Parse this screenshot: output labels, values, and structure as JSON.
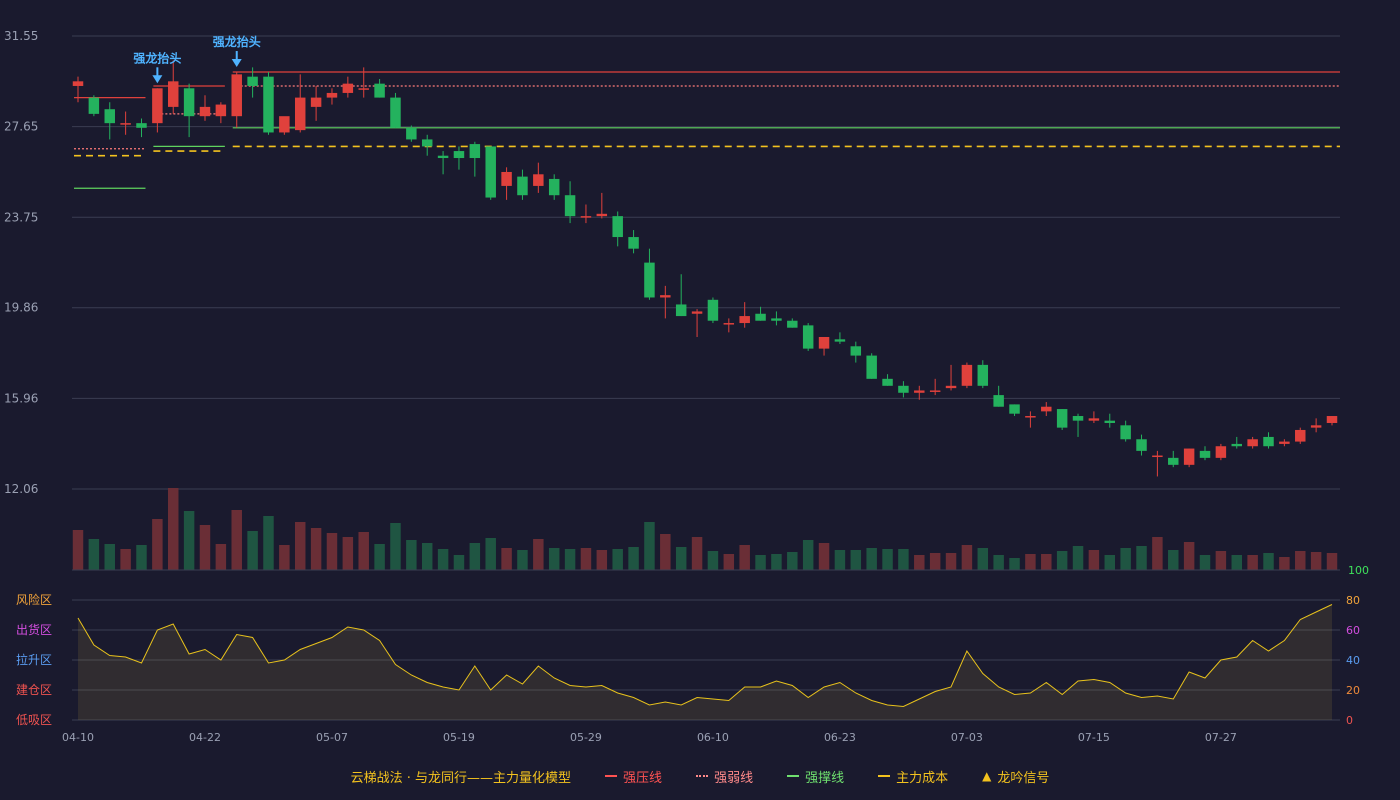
{
  "chart_data": {
    "type": "candlestick",
    "price_axis": {
      "ticks": [
        31.55,
        27.65,
        23.75,
        19.86,
        15.96,
        12.06
      ],
      "range": [
        12.06,
        31.55
      ]
    },
    "x_labels": [
      "04-10",
      "04-22",
      "05-07",
      "05-19",
      "05-29",
      "06-10",
      "06-23",
      "07-03",
      "07-15",
      "07-27"
    ],
    "x_label_index": [
      0,
      8,
      16,
      24,
      32,
      40,
      48,
      56,
      64,
      72
    ],
    "candles": [
      {
        "o": 29.4,
        "h": 29.8,
        "l": 28.7,
        "c": 29.6
      },
      {
        "o": 28.9,
        "h": 29.0,
        "l": 28.1,
        "c": 28.2
      },
      {
        "o": 28.4,
        "h": 28.7,
        "l": 27.1,
        "c": 27.8
      },
      {
        "o": 27.8,
        "h": 28.3,
        "l": 27.3,
        "c": 27.8
      },
      {
        "o": 27.8,
        "h": 28.0,
        "l": 27.2,
        "c": 27.6
      },
      {
        "o": 27.8,
        "h": 29.3,
        "l": 27.4,
        "c": 29.3
      },
      {
        "o": 28.5,
        "h": 30.5,
        "l": 28.2,
        "c": 29.6
      },
      {
        "o": 29.3,
        "h": 29.5,
        "l": 27.2,
        "c": 28.1
      },
      {
        "o": 28.1,
        "h": 29.0,
        "l": 27.9,
        "c": 28.5
      },
      {
        "o": 28.1,
        "h": 28.7,
        "l": 27.8,
        "c": 28.6
      },
      {
        "o": 28.1,
        "h": 30.0,
        "l": 27.6,
        "c": 29.9
      },
      {
        "o": 29.8,
        "h": 30.2,
        "l": 28.9,
        "c": 29.4
      },
      {
        "o": 29.8,
        "h": 30.0,
        "l": 27.3,
        "c": 27.4
      },
      {
        "o": 27.4,
        "h": 28.0,
        "l": 27.3,
        "c": 28.1
      },
      {
        "o": 27.5,
        "h": 29.9,
        "l": 27.4,
        "c": 28.9
      },
      {
        "o": 28.5,
        "h": 29.4,
        "l": 27.9,
        "c": 28.9
      },
      {
        "o": 28.9,
        "h": 29.3,
        "l": 28.6,
        "c": 29.1
      },
      {
        "o": 29.1,
        "h": 29.8,
        "l": 28.9,
        "c": 29.5
      },
      {
        "o": 29.3,
        "h": 30.2,
        "l": 28.9,
        "c": 29.3
      },
      {
        "o": 29.5,
        "h": 29.7,
        "l": 28.9,
        "c": 28.9
      },
      {
        "o": 28.9,
        "h": 29.1,
        "l": 27.6,
        "c": 27.6
      },
      {
        "o": 27.6,
        "h": 27.7,
        "l": 27.0,
        "c": 27.1
      },
      {
        "o": 27.1,
        "h": 27.3,
        "l": 26.4,
        "c": 26.8
      },
      {
        "o": 26.4,
        "h": 26.6,
        "l": 25.6,
        "c": 26.3
      },
      {
        "o": 26.6,
        "h": 26.8,
        "l": 25.8,
        "c": 26.3
      },
      {
        "o": 26.9,
        "h": 27.0,
        "l": 25.5,
        "c": 26.3
      },
      {
        "o": 26.8,
        "h": 26.8,
        "l": 24.5,
        "c": 24.6
      },
      {
        "o": 25.1,
        "h": 25.9,
        "l": 24.5,
        "c": 25.7
      },
      {
        "o": 25.5,
        "h": 25.8,
        "l": 24.5,
        "c": 24.7
      },
      {
        "o": 25.1,
        "h": 26.1,
        "l": 24.8,
        "c": 25.6
      },
      {
        "o": 25.4,
        "h": 25.6,
        "l": 24.5,
        "c": 24.7
      },
      {
        "o": 24.7,
        "h": 25.3,
        "l": 23.5,
        "c": 23.8
      },
      {
        "o": 23.8,
        "h": 24.3,
        "l": 23.5,
        "c": 23.8
      },
      {
        "o": 23.8,
        "h": 24.8,
        "l": 23.7,
        "c": 23.9
      },
      {
        "o": 23.8,
        "h": 24.0,
        "l": 22.5,
        "c": 22.9
      },
      {
        "o": 22.9,
        "h": 23.2,
        "l": 22.2,
        "c": 22.4
      },
      {
        "o": 21.8,
        "h": 22.4,
        "l": 20.2,
        "c": 20.3
      },
      {
        "o": 20.3,
        "h": 20.8,
        "l": 19.4,
        "c": 20.4
      },
      {
        "o": 20.0,
        "h": 21.3,
        "l": 19.5,
        "c": 19.5
      },
      {
        "o": 19.6,
        "h": 19.8,
        "l": 18.6,
        "c": 19.7
      },
      {
        "o": 20.2,
        "h": 20.3,
        "l": 19.2,
        "c": 19.3
      },
      {
        "o": 19.2,
        "h": 19.4,
        "l": 18.8,
        "c": 19.2
      },
      {
        "o": 19.2,
        "h": 20.1,
        "l": 19.0,
        "c": 19.5
      },
      {
        "o": 19.6,
        "h": 19.9,
        "l": 19.3,
        "c": 19.3
      },
      {
        "o": 19.4,
        "h": 19.7,
        "l": 19.1,
        "c": 19.3
      },
      {
        "o": 19.3,
        "h": 19.4,
        "l": 19.0,
        "c": 19.0
      },
      {
        "o": 19.1,
        "h": 19.2,
        "l": 18.0,
        "c": 18.1
      },
      {
        "o": 18.1,
        "h": 18.6,
        "l": 17.8,
        "c": 18.6
      },
      {
        "o": 18.5,
        "h": 18.8,
        "l": 18.3,
        "c": 18.4
      },
      {
        "o": 18.2,
        "h": 18.4,
        "l": 17.5,
        "c": 17.8
      },
      {
        "o": 17.8,
        "h": 17.9,
        "l": 16.8,
        "c": 16.8
      },
      {
        "o": 16.8,
        "h": 17.0,
        "l": 16.5,
        "c": 16.5
      },
      {
        "o": 16.5,
        "h": 16.7,
        "l": 16.0,
        "c": 16.2
      },
      {
        "o": 16.2,
        "h": 16.5,
        "l": 15.9,
        "c": 16.3
      },
      {
        "o": 16.3,
        "h": 16.8,
        "l": 16.1,
        "c": 16.3
      },
      {
        "o": 16.4,
        "h": 17.4,
        "l": 16.3,
        "c": 16.5
      },
      {
        "o": 16.5,
        "h": 17.5,
        "l": 16.4,
        "c": 17.4
      },
      {
        "o": 17.4,
        "h": 17.6,
        "l": 16.4,
        "c": 16.5
      },
      {
        "o": 16.1,
        "h": 16.5,
        "l": 15.6,
        "c": 15.6
      },
      {
        "o": 15.7,
        "h": 15.7,
        "l": 15.2,
        "c": 15.3
      },
      {
        "o": 15.2,
        "h": 15.4,
        "l": 14.7,
        "c": 15.2
      },
      {
        "o": 15.4,
        "h": 15.8,
        "l": 15.2,
        "c": 15.6
      },
      {
        "o": 15.5,
        "h": 15.5,
        "l": 14.6,
        "c": 14.7
      },
      {
        "o": 15.2,
        "h": 15.3,
        "l": 14.3,
        "c": 15.0
      },
      {
        "o": 15.0,
        "h": 15.4,
        "l": 14.9,
        "c": 15.1
      },
      {
        "o": 15.0,
        "h": 15.3,
        "l": 14.7,
        "c": 14.9
      },
      {
        "o": 14.8,
        "h": 15.0,
        "l": 14.1,
        "c": 14.2
      },
      {
        "o": 14.2,
        "h": 14.4,
        "l": 13.5,
        "c": 13.7
      },
      {
        "o": 13.5,
        "h": 13.7,
        "l": 12.6,
        "c": 13.5
      },
      {
        "o": 13.4,
        "h": 13.7,
        "l": 13.0,
        "c": 13.1
      },
      {
        "o": 13.1,
        "h": 13.8,
        "l": 13.0,
        "c": 13.8
      },
      {
        "o": 13.7,
        "h": 13.9,
        "l": 13.3,
        "c": 13.4
      },
      {
        "o": 13.4,
        "h": 14.0,
        "l": 13.3,
        "c": 13.9
      },
      {
        "o": 14.0,
        "h": 14.3,
        "l": 13.8,
        "c": 13.9
      },
      {
        "o": 13.9,
        "h": 14.3,
        "l": 13.8,
        "c": 14.2
      },
      {
        "o": 14.3,
        "h": 14.5,
        "l": 13.8,
        "c": 13.9
      },
      {
        "o": 14.0,
        "h": 14.2,
        "l": 13.9,
        "c": 14.1
      },
      {
        "o": 14.1,
        "h": 14.7,
        "l": 14.0,
        "c": 14.6
      },
      {
        "o": 14.7,
        "h": 15.1,
        "l": 14.5,
        "c": 14.8
      },
      {
        "o": 14.9,
        "h": 15.2,
        "l": 14.8,
        "c": 15.2
      }
    ],
    "volume": [
      40,
      31,
      26,
      21,
      25,
      51,
      82,
      59,
      45,
      26,
      60,
      39,
      54,
      25,
      48,
      42,
      37,
      33,
      38,
      26,
      47,
      30,
      27,
      21,
      15,
      27,
      32,
      22,
      20,
      31,
      22,
      21,
      22,
      20,
      21,
      23,
      48,
      36,
      23,
      33,
      19,
      16,
      25,
      15,
      16,
      18,
      30,
      27,
      20,
      20,
      22,
      21,
      21,
      15,
      17,
      17,
      25,
      22,
      15,
      12,
      16,
      16,
      19,
      24,
      20,
      15,
      22,
      24,
      33,
      20,
      28,
      15,
      19,
      15,
      15,
      17,
      13,
      19,
      18,
      17
    ],
    "indicator": {
      "axis_ticks": [
        100,
        80,
        60,
        40,
        20,
        0
      ],
      "zone_labels": [
        "风险区",
        "出货区",
        "拉升区",
        "建仓区",
        "低吸区"
      ],
      "values": [
        68,
        50,
        43,
        42,
        38,
        60,
        64,
        44,
        47,
        40,
        57,
        55,
        38,
        40,
        47,
        51,
        55,
        62,
        60,
        53,
        37,
        30,
        25,
        22,
        20,
        36,
        20,
        30,
        24,
        36,
        28,
        23,
        22,
        23,
        18,
        15,
        10,
        12,
        10,
        15,
        14,
        13,
        22,
        22,
        26,
        23,
        15,
        22,
        25,
        18,
        13,
        10,
        9,
        14,
        19,
        22,
        46,
        31,
        22,
        17,
        18,
        25,
        17,
        26,
        27,
        25,
        18,
        15,
        16,
        14,
        32,
        28,
        40,
        42,
        53,
        46,
        53,
        67,
        72,
        77
      ]
    },
    "lines": {
      "strong_press": [
        {
          "i0": 0,
          "i1": 4,
          "v": 28.9
        },
        {
          "i0": 5,
          "i1": 9,
          "v": 29.4
        },
        {
          "i0": 10,
          "i1": 79,
          "v": 30.0
        }
      ],
      "strong_weak": [
        {
          "i0": 0,
          "i1": 4,
          "v": 26.7
        },
        {
          "i0": 5,
          "i1": 9,
          "v": 28.2
        },
        {
          "i0": 10,
          "i1": 79,
          "v": 29.4
        }
      ],
      "support": [
        {
          "i0": 0,
          "i1": 4,
          "v": 25.0
        },
        {
          "i0": 5,
          "i1": 9,
          "v": 26.8
        },
        {
          "i0": 10,
          "i1": 79,
          "v": 27.6
        }
      ],
      "main_cost": [
        {
          "i0": 0,
          "i1": 4,
          "v": 26.4
        },
        {
          "i0": 5,
          "i1": 9,
          "v": 26.6
        },
        {
          "i0": 10,
          "i1": 79,
          "v": 26.8
        }
      ]
    },
    "annotations": [
      {
        "index": 5,
        "text": "强龙抬头"
      },
      {
        "index": 10,
        "text": "强龙抬头"
      }
    ],
    "colors": {
      "up": "#e0413c",
      "down": "#24b25e",
      "vol_up": "#6a2e36",
      "vol_down": "#1f5542",
      "press": "#e0413c",
      "weak": "#ff7a7a",
      "support": "#5fd35f",
      "cost": "#f3c21e",
      "indicator": "#e8c21c",
      "annot": "#4fb3ff"
    }
  },
  "legend": {
    "title": "云梯战法 · 与龙同行——主力量化模型",
    "items": [
      {
        "label": "强压线",
        "color": "#ff5252",
        "style": "solid"
      },
      {
        "label": "强弱线",
        "color": "#ff8a8a",
        "style": "dotted"
      },
      {
        "label": "强撑线",
        "color": "#6fe06f",
        "style": "solid"
      },
      {
        "label": "主力成本",
        "color": "#f3c21e",
        "style": "dashed"
      },
      {
        "label": "龙吟信号",
        "color": "#f3c21e",
        "style": "triangle"
      }
    ]
  }
}
